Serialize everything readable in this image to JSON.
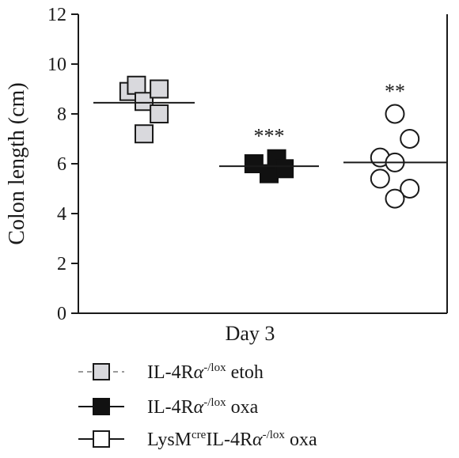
{
  "chart_data": {
    "type": "scatter",
    "ylabel": "Colon length (cm)",
    "ylim": [
      0,
      12
    ],
    "yticks": [
      0,
      2,
      4,
      6,
      8,
      10,
      12
    ],
    "xlabel": "Day 3",
    "grid": false,
    "legend_position": "bottom",
    "series": [
      {
        "name": "IL-4Rα-/lox etoh",
        "legend": {
          "pre": "IL-4R",
          "greek": "α",
          "sup": "-/lox",
          "post": " etoh",
          "pre_sup": ""
        },
        "marker": "square",
        "fill": "#d9d9dd",
        "stroke": "#1a1a1a",
        "line": "#9a9a9a",
        "mean": 8.45,
        "significance": "",
        "points": [
          {
            "x": -0.9,
            "y": 8.9
          },
          {
            "x": -0.45,
            "y": 9.15
          },
          {
            "x": 0.0,
            "y": 8.5
          },
          {
            "x": 0.9,
            "y": 9.0
          },
          {
            "x": 0.9,
            "y": 8.0
          },
          {
            "x": 0.0,
            "y": 7.2
          }
        ]
      },
      {
        "name": "IL-4Rα-/lox oxa",
        "legend": {
          "pre": "IL-4R",
          "greek": "α",
          "sup": "-/lox",
          "post": " oxa",
          "pre_sup": ""
        },
        "marker": "square",
        "fill": "#111111",
        "stroke": "#111111",
        "line": "#111111",
        "mean": 5.9,
        "significance": "***",
        "points": [
          {
            "x": -0.9,
            "y": 6.0
          },
          {
            "x": 0.0,
            "y": 5.6
          },
          {
            "x": 0.45,
            "y": 6.2
          },
          {
            "x": 0.9,
            "y": 5.8
          }
        ]
      },
      {
        "name": "LysMcreIL-4Rα-/lox oxa",
        "legend": {
          "pre": "LysM",
          "pre_sup": "cre",
          "pre2": "IL-4R",
          "greek": "α",
          "sup": "-/lox",
          "post": " oxa"
        },
        "marker": "circle",
        "fill": "#ffffff",
        "stroke": "#1a1a1a",
        "line": "#1a1a1a",
        "mean": 6.05,
        "significance": "**",
        "points": [
          {
            "x": 0.0,
            "y": 8.0
          },
          {
            "x": 1.0,
            "y": 7.0
          },
          {
            "x": -1.0,
            "y": 6.25
          },
          {
            "x": 0.0,
            "y": 6.05
          },
          {
            "x": -1.0,
            "y": 5.4
          },
          {
            "x": 1.0,
            "y": 5.0
          },
          {
            "x": 0.0,
            "y": 4.6
          }
        ]
      }
    ]
  }
}
